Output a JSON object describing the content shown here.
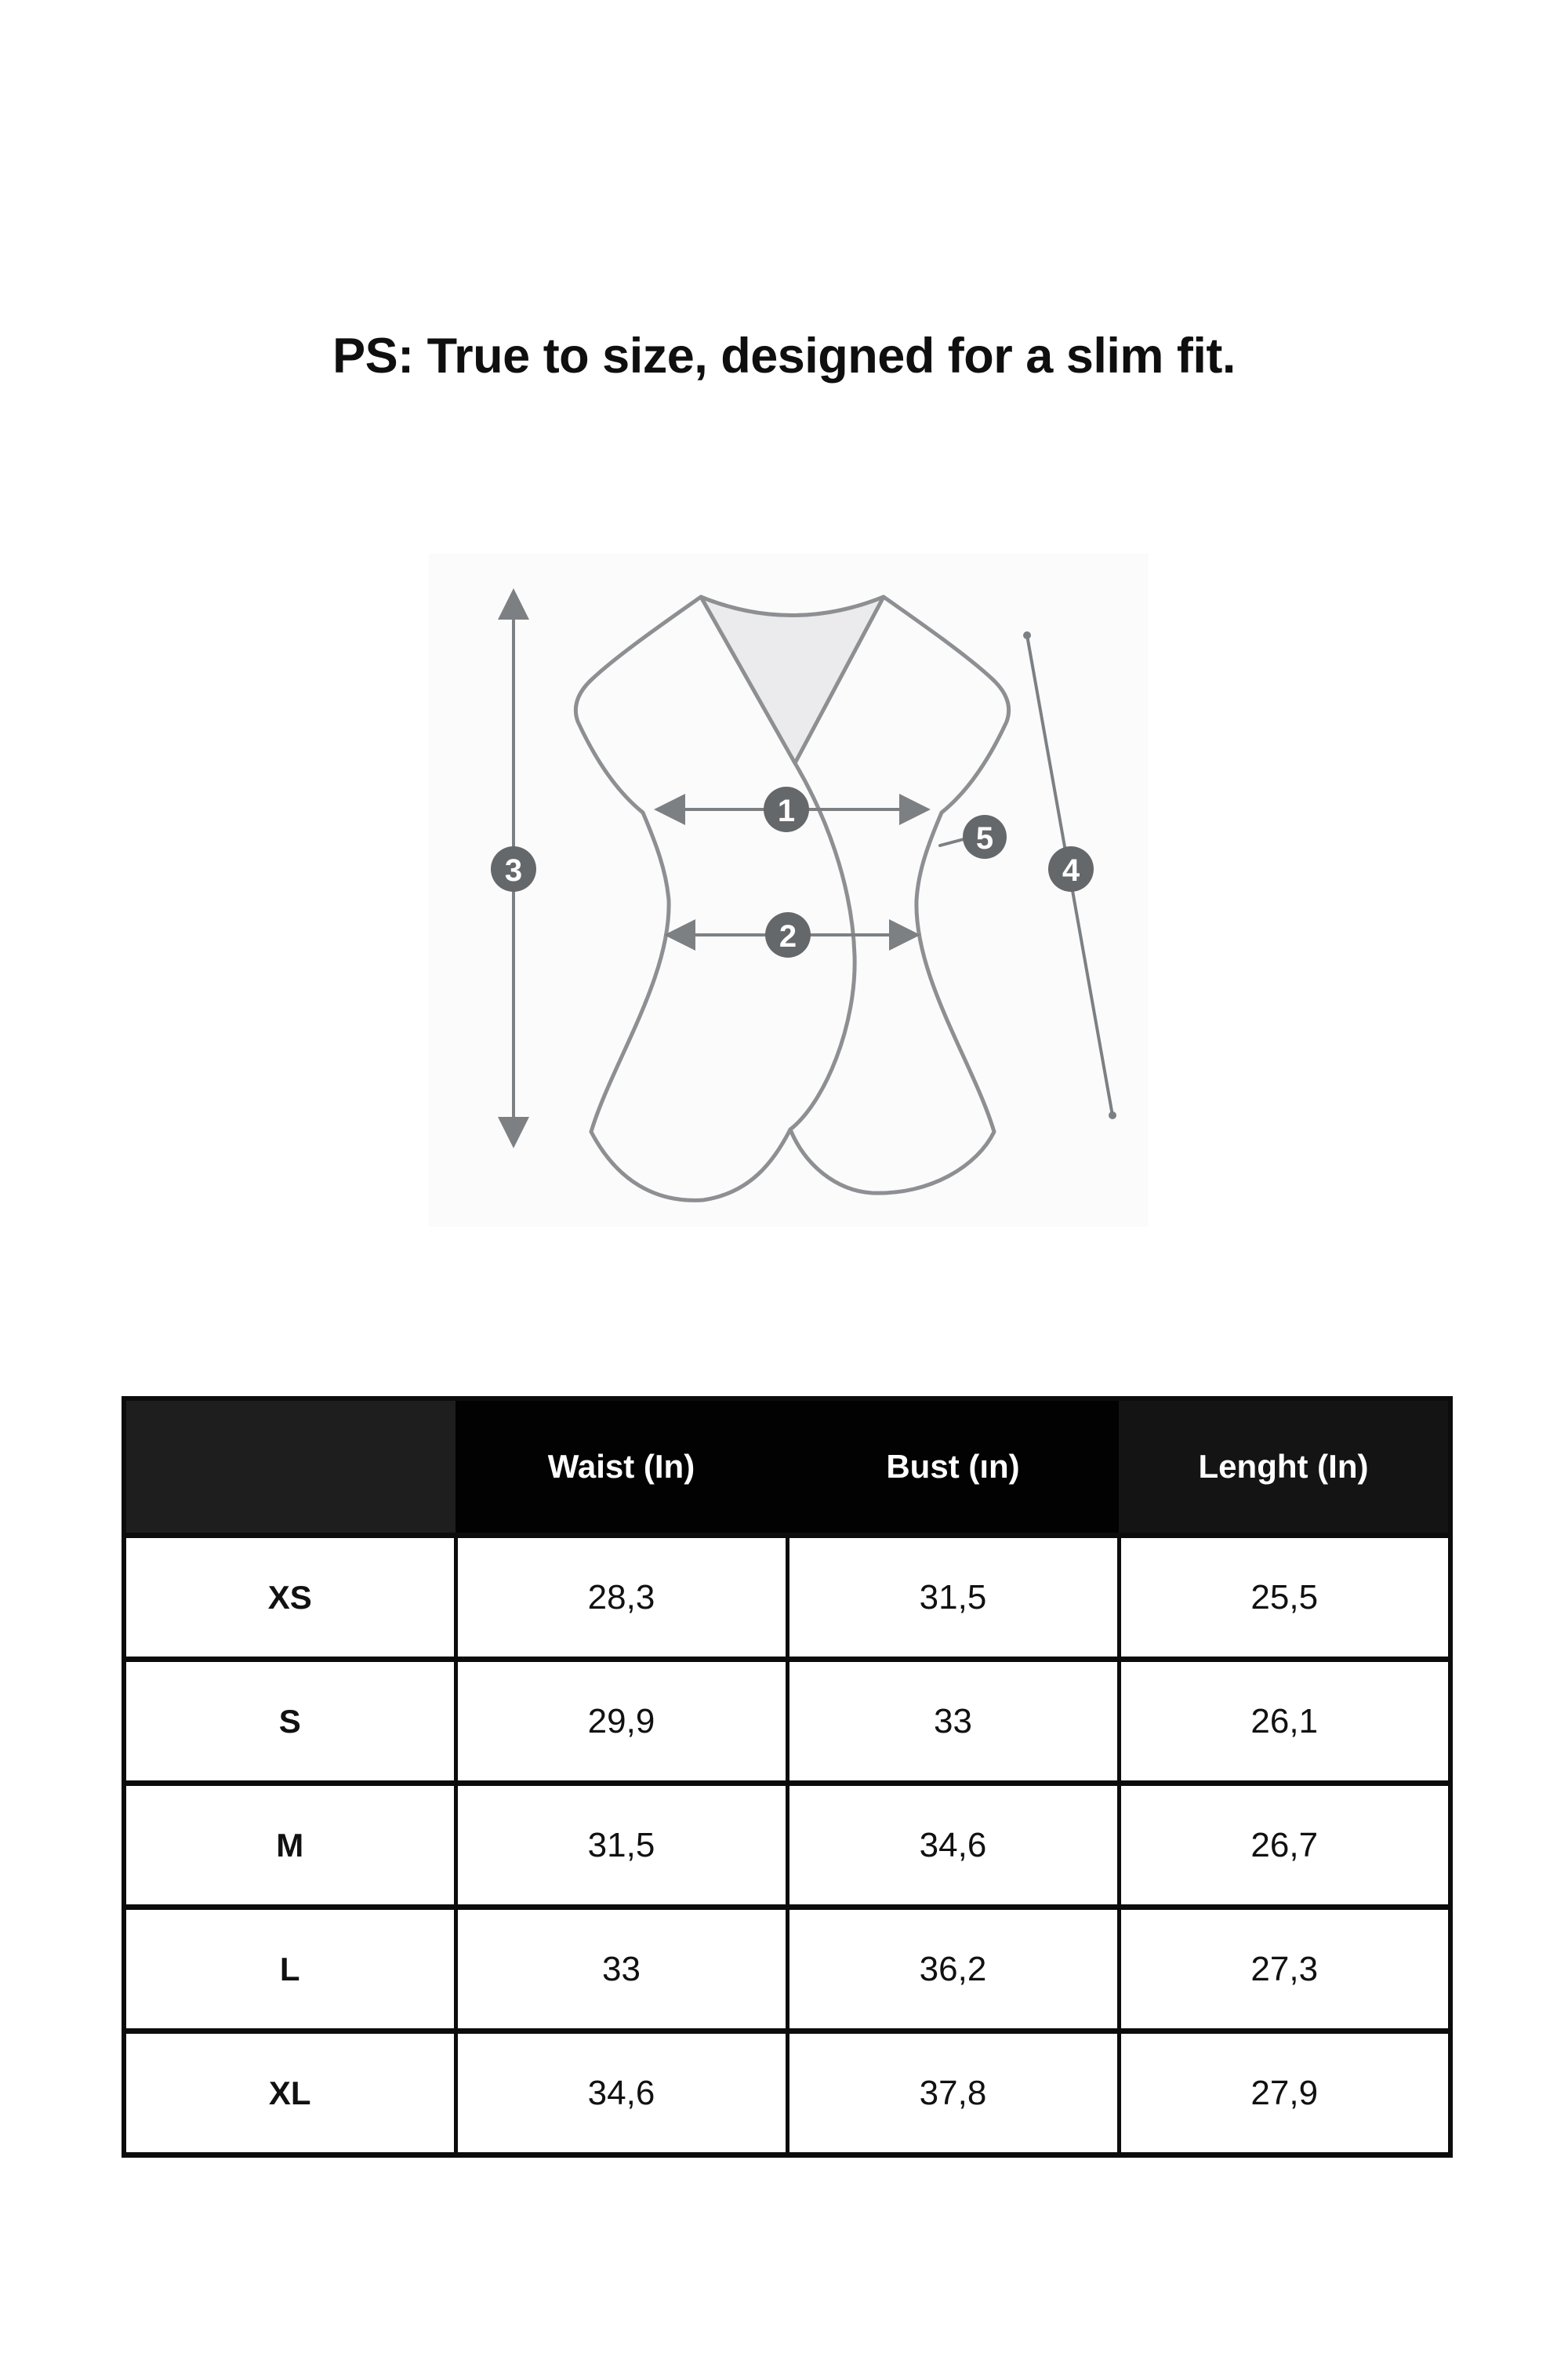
{
  "page": {
    "title": "PS: True to size, designed for a slim fit."
  },
  "diagram": {
    "description": "sleeveless wrap top measurement diagram",
    "markers": [
      "1",
      "2",
      "3",
      "4",
      "5"
    ],
    "colors": {
      "badge_fill": "#65686b",
      "marker_text": "#ffffff",
      "garment_line": "#8d8f92",
      "arrow_line": "#7d8083",
      "neck_fill": "#ebebed",
      "panel_bg": "#fbfbfb"
    }
  },
  "table": {
    "headers": [
      "",
      "Waist (In)",
      "Bust (ın)",
      "Lenght (In)"
    ],
    "rows": [
      {
        "size": "XS",
        "values": [
          "28,3",
          "31,5",
          "25,5"
        ]
      },
      {
        "size": "S",
        "values": [
          "29,9",
          "33",
          "26,1"
        ]
      },
      {
        "size": "M",
        "values": [
          "31,5",
          "34,6",
          "26,7"
        ]
      },
      {
        "size": "L",
        "values": [
          "33",
          "36,2",
          "27,3"
        ]
      },
      {
        "size": "XL",
        "values": [
          "34,6",
          "37,8",
          "27,9"
        ]
      }
    ],
    "colors": {
      "header_bg": "#020202",
      "header_bg_first": "#1e1e1e",
      "header_bg_last": "#141414",
      "header_text": "#ffffff",
      "border": "#0c0c0c"
    }
  }
}
